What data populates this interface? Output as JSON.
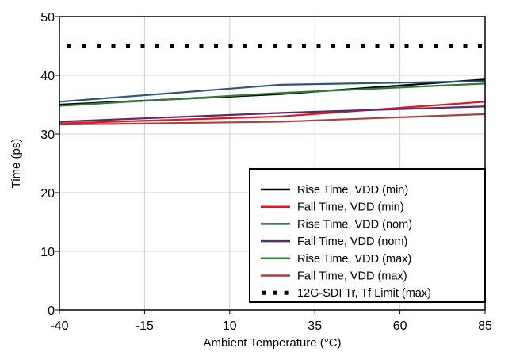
{
  "chart_data": {
    "type": "line",
    "x": [
      -40,
      25,
      85
    ],
    "x_ticks": [
      "-40",
      "-15",
      "10",
      "35",
      "60",
      "85"
    ],
    "y_ticks": [
      "0",
      "10",
      "20",
      "30",
      "40",
      "50"
    ],
    "xlim": [
      -40,
      85
    ],
    "ylim": [
      0,
      50
    ],
    "xlabel": "Ambient Temperature (°C)",
    "ylabel": "Time (ps)",
    "grid": true,
    "legend_position": "bottom-right",
    "series": [
      {
        "name": "Rise Time, VDD (min)",
        "values": [
          35.0,
          36.8,
          39.3
        ],
        "color": "#000000",
        "style": "solid"
      },
      {
        "name": "Fall Time, VDD (min)",
        "values": [
          31.8,
          33.0,
          35.5
        ],
        "color": "#e8141b",
        "style": "solid"
      },
      {
        "name": "Rise Time, VDD (nom)",
        "values": [
          35.5,
          38.4,
          39.0
        ],
        "color": "#2f5972",
        "style": "solid"
      },
      {
        "name": "Fall Time, VDD (nom)",
        "values": [
          32.1,
          33.6,
          34.7
        ],
        "color": "#5a2b6e",
        "style": "solid"
      },
      {
        "name": "Rise Time, VDD (max)",
        "values": [
          34.8,
          37.0,
          38.6
        ],
        "color": "#2f7d3a",
        "style": "solid"
      },
      {
        "name": "Fall Time, VDD (max)",
        "values": [
          31.6,
          32.1,
          33.4
        ],
        "color": "#a8403d",
        "style": "solid"
      },
      {
        "name": "12G-SDI Tr, Tf Limit (max)",
        "values": [
          45,
          45,
          45
        ],
        "color": "#000000",
        "style": "dotted"
      }
    ]
  }
}
